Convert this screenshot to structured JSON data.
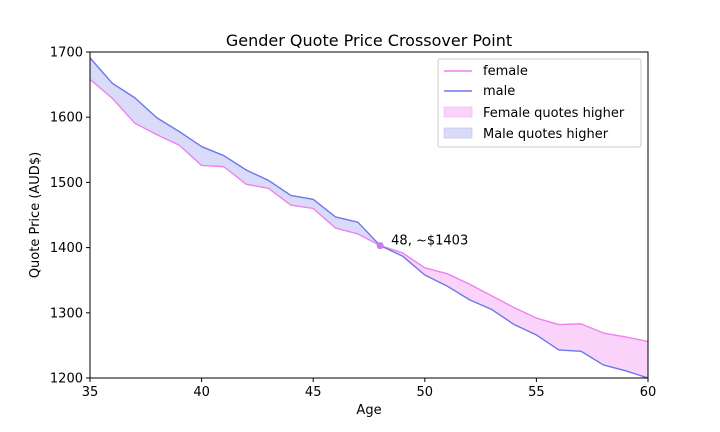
{
  "chart_data": {
    "type": "line",
    "title": "Gender Quote Price Crossover Point",
    "xlabel": "Age",
    "ylabel": "Quote Price (AUD$)",
    "xlim": [
      35,
      60
    ],
    "ylim": [
      1200,
      1700
    ],
    "xticks": [
      35,
      40,
      45,
      50,
      55,
      60
    ],
    "yticks": [
      1200,
      1300,
      1400,
      1500,
      1600,
      1700
    ],
    "grid": false,
    "legend_position": "top-right",
    "x": [
      35,
      36,
      37,
      38,
      39,
      40,
      41,
      42,
      43,
      44,
      45,
      46,
      47,
      48,
      49,
      50,
      51,
      52,
      53,
      54,
      55,
      56,
      57,
      58,
      59,
      60
    ],
    "series": [
      {
        "name": "female",
        "color": "#ee82ee",
        "values": [
          1658,
          1629,
          1591,
          1573,
          1557,
          1526,
          1524,
          1497,
          1491,
          1465,
          1460,
          1430,
          1421,
          1403,
          1392,
          1369,
          1360,
          1344,
          1326,
          1308,
          1292,
          1282,
          1283,
          1269,
          1263,
          1256
        ]
      },
      {
        "name": "male",
        "color": "#6b78ea",
        "values": [
          1691,
          1652,
          1630,
          1599,
          1578,
          1555,
          1541,
          1519,
          1503,
          1480,
          1474,
          1447,
          1439,
          1403,
          1387,
          1358,
          1341,
          1320,
          1305,
          1282,
          1266,
          1243,
          1241,
          1220,
          1211,
          1200
        ]
      }
    ],
    "fills": [
      {
        "name": "Female quotes higher",
        "color": "#f9d3f9"
      },
      {
        "name": "Male quotes higher",
        "color": "#d9dbf9"
      }
    ],
    "annotation": {
      "x": 48,
      "y": 1403,
      "text": "48, ~$1403",
      "color": "#c77ee8"
    }
  }
}
